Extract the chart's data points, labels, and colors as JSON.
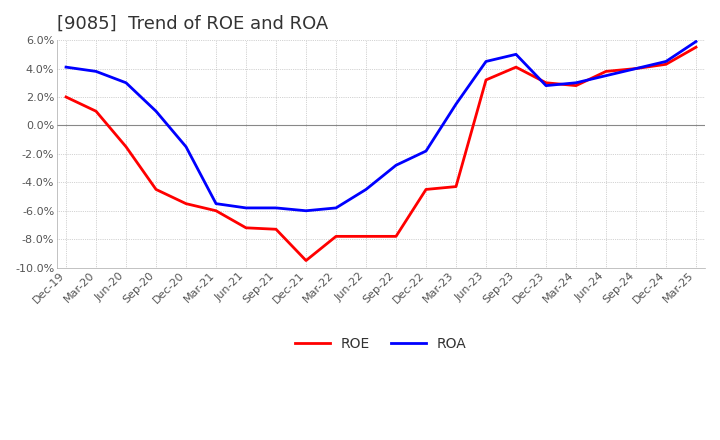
{
  "title": "[9085]  Trend of ROE and ROA",
  "ylim": [
    -10.0,
    6.0
  ],
  "yticks": [
    -10.0,
    -8.0,
    -6.0,
    -4.0,
    -2.0,
    0.0,
    2.0,
    4.0,
    6.0
  ],
  "x_labels": [
    "Dec-19",
    "Mar-20",
    "Jun-20",
    "Sep-20",
    "Dec-20",
    "Mar-21",
    "Jun-21",
    "Sep-21",
    "Dec-21",
    "Mar-22",
    "Jun-22",
    "Sep-22",
    "Dec-22",
    "Mar-23",
    "Jun-23",
    "Sep-23",
    "Dec-23",
    "Mar-24",
    "Jun-24",
    "Sep-24",
    "Dec-24",
    "Mar-25"
  ],
  "roe_values": [
    2.0,
    1.0,
    -1.5,
    -4.5,
    -5.5,
    -6.0,
    -7.2,
    -7.3,
    -9.5,
    -7.8,
    -7.8,
    -7.8,
    -4.5,
    -4.3,
    3.2,
    4.1,
    3.0,
    2.8,
    3.8,
    4.0,
    4.3,
    5.5
  ],
  "roa_values": [
    4.1,
    3.8,
    3.0,
    1.0,
    -1.5,
    -5.5,
    -5.8,
    -5.8,
    -6.0,
    -5.8,
    -4.5,
    -2.8,
    -1.8,
    1.5,
    4.5,
    5.0,
    2.8,
    3.0,
    3.5,
    4.0,
    4.5,
    5.9
  ],
  "roe_color": "#ff0000",
  "roa_color": "#0000ff",
  "line_width": 2.0,
  "dot_grid_color": "#aaaaaa",
  "solid_grid_color": "#888888",
  "background_color": "#ffffff",
  "title_fontsize": 13,
  "tick_fontsize": 8,
  "legend_fontsize": 10
}
